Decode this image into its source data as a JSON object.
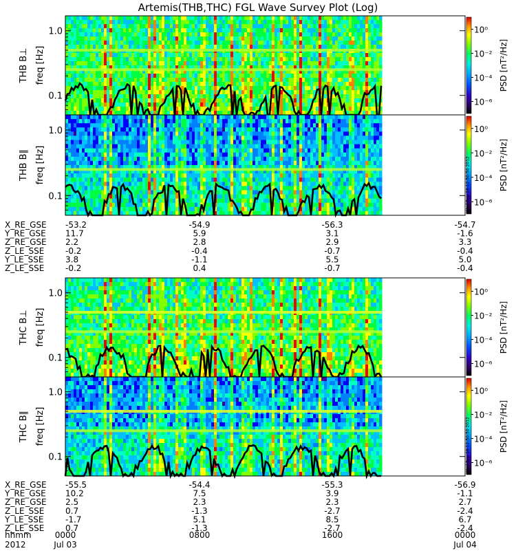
{
  "title": "Artemis(THB,THC) FGL Wave Survey Plot (Log)",
  "colors": {
    "scale": [
      "#000000",
      "#200040",
      "#4000a0",
      "#0000ff",
      "#0080ff",
      "#00c0ff",
      "#00ffc0",
      "#00ff40",
      "#80ff00",
      "#ffff00",
      "#ff8000",
      "#ff0000"
    ],
    "background": "#00dd88",
    "line": "#000000"
  },
  "chart_data": [
    {
      "type": "heatmap",
      "panel_label": "THB B⊥",
      "ylabel": "freq [Hz]",
      "yscale": "log",
      "ylim": [
        0.05,
        1.7
      ],
      "yticks": [
        "1.0",
        "0.1"
      ],
      "colorbar_label": "PSD [nT²/Hz]",
      "colorbar_ticks": [
        "10⁰",
        "10⁻²",
        "10⁻⁴",
        "10⁻⁶"
      ],
      "colorbar_range_log10": [
        -7,
        1
      ],
      "x_range_hhmm": [
        "0000",
        "2400"
      ],
      "data_end_hhmm": "1900",
      "stamp": ""
    },
    {
      "type": "heatmap",
      "panel_label": "THB B∥",
      "ylabel": "freq [Hz]",
      "yscale": "log",
      "ylim": [
        0.05,
        1.7
      ],
      "yticks": [
        "1.0",
        "0.1"
      ],
      "colorbar_label": "PSD [nT²/Hz]",
      "colorbar_ticks": [
        "10⁰",
        "10⁻²",
        "10⁻⁴",
        "10⁻⁶"
      ],
      "colorbar_range_log10": [
        -7,
        1
      ],
      "x_range_hhmm": [
        "0000",
        "2400"
      ],
      "data_end_hhmm": "1900",
      "stamp": "Wed Sep 19 12:50:50 2012"
    },
    {
      "type": "heatmap",
      "panel_label": "THC B⊥",
      "ylabel": "freq [Hz]",
      "yscale": "log",
      "ylim": [
        0.05,
        1.7
      ],
      "yticks": [
        "1.0",
        "0.1"
      ],
      "colorbar_label": "PSD [nT²/Hz]",
      "colorbar_ticks": [
        "10⁰",
        "10⁻²",
        "10⁻⁴",
        "10⁻⁶"
      ],
      "colorbar_range_log10": [
        -7,
        1
      ],
      "x_range_hhmm": [
        "0000",
        "2400"
      ],
      "data_end_hhmm": "1900",
      "stamp": ""
    },
    {
      "type": "heatmap",
      "panel_label": "THC B∥",
      "ylabel": "freq [Hz]",
      "yscale": "log",
      "ylim": [
        0.05,
        1.7
      ],
      "yticks": [
        "1.0",
        "0.1"
      ],
      "colorbar_label": "PSD [nT²/Hz]",
      "colorbar_ticks": [
        "10⁰",
        "10⁻²",
        "10⁻⁴",
        "10⁻⁶"
      ],
      "colorbar_range_log10": [
        -7,
        1
      ],
      "x_range_hhmm": [
        "0000",
        "2400"
      ],
      "data_end_hhmm": "1900",
      "stamp": "Wed Sep 19 12:50:50 2012"
    }
  ],
  "thb_ephemeris": [
    {
      "label": "X_RE_GSE",
      "values": [
        "-53.2",
        "-54.9",
        "-56.3",
        "-54.7"
      ]
    },
    {
      "label": "Y_RE_GSE",
      "values": [
        "11.7",
        "5.9",
        "3.1",
        "-1.6"
      ]
    },
    {
      "label": "Z_RE_GSE",
      "values": [
        "2.2",
        "2.8",
        "2.9",
        "3.3"
      ]
    },
    {
      "label": "Z_LE_SSE",
      "values": [
        "-0.2",
        "-0.4",
        "-0.7",
        "-0.4"
      ]
    },
    {
      "label": "Y_LE_SSE",
      "values": [
        "3.8",
        "-1.1",
        "5.5",
        "5.0"
      ]
    },
    {
      "label": "Z_LE_SSE",
      "values": [
        "-0.2",
        "0.4",
        "-0.7",
        "-0.4"
      ]
    }
  ],
  "thc_ephemeris": [
    {
      "label": "X_RE_GSE",
      "values": [
        "-55.5",
        "-54.4",
        "-55.3",
        "-56.9"
      ]
    },
    {
      "label": "Y_RE_GSE",
      "values": [
        "10.2",
        "7.5",
        "3.9",
        "-1.1"
      ]
    },
    {
      "label": "Z_RE_GSE",
      "values": [
        "2.5",
        "2.3",
        "2.3",
        "2.7"
      ]
    },
    {
      "label": "Z_LE_SSE",
      "values": [
        "0.7",
        "-1.3",
        "-2.7",
        "-2.4"
      ]
    },
    {
      "label": "Y_LE_SSE",
      "values": [
        "-1.7",
        "5.1",
        "8.5",
        "6.7"
      ]
    },
    {
      "label": "Z_LE_SSE",
      "values": [
        "0.7",
        "-1.3",
        "-2.7",
        "-2.4"
      ]
    }
  ],
  "time_axis": {
    "hhmm_label": "hhmm",
    "hhmm_values": [
      "0000",
      "0800",
      "1600",
      "0000"
    ],
    "year_label": "2012",
    "dates": [
      "Jul 03",
      "",
      "",
      "Jul 04"
    ]
  }
}
